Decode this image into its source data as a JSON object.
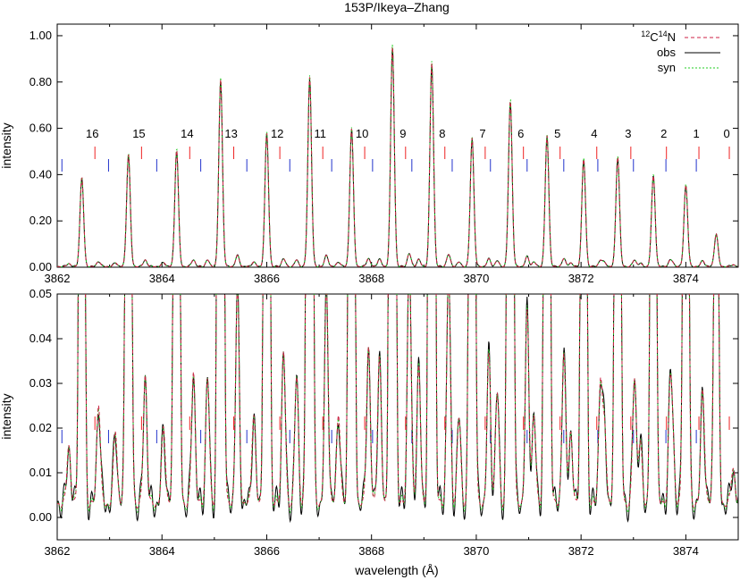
{
  "title": "153P/Ikeya–Zhang",
  "legend": {
    "items": [
      {
        "label_pre": "12",
        "label_c": "C",
        "label_sup2": "14",
        "label_n": "N",
        "color": "#cc2244",
        "dash": "4,3"
      },
      {
        "label": "obs",
        "color": "#000000",
        "dash": ""
      },
      {
        "label": "syn",
        "color": "#22cc22",
        "dash": "2,2"
      }
    ]
  },
  "marker_colors": {
    "red": "#ee2222",
    "blue": "#2233cc"
  },
  "chart_data": [
    {
      "type": "line",
      "panel": "top",
      "xlabel": "",
      "ylabel": "intensity",
      "xlim": [
        3862,
        3875
      ],
      "ylim": [
        0,
        1.05
      ],
      "x_ticks": [
        "3862",
        "3864",
        "3866",
        "3868",
        "3870",
        "3872",
        "3874"
      ],
      "y_ticks": [
        "0.00",
        "0.20",
        "0.40",
        "0.60",
        "0.80",
        "1.00"
      ],
      "line_numbers": [
        "16",
        "15",
        "14",
        "13",
        "12",
        "11",
        "10",
        "9",
        "8",
        "7",
        "6",
        "5",
        "4",
        "3",
        "2",
        "1",
        "0"
      ],
      "main_peaks": [
        {
          "x": 3862.47,
          "y": 0.38
        },
        {
          "x": 3863.36,
          "y": 0.48
        },
        {
          "x": 3864.28,
          "y": 0.5
        },
        {
          "x": 3865.12,
          "y": 0.8
        },
        {
          "x": 3866.0,
          "y": 0.57
        },
        {
          "x": 3866.82,
          "y": 0.81
        },
        {
          "x": 3867.62,
          "y": 0.59
        },
        {
          "x": 3868.4,
          "y": 0.94
        },
        {
          "x": 3869.15,
          "y": 0.87
        },
        {
          "x": 3869.92,
          "y": 0.55
        },
        {
          "x": 3870.65,
          "y": 0.71
        },
        {
          "x": 3871.35,
          "y": 0.56
        },
        {
          "x": 3872.05,
          "y": 0.46
        },
        {
          "x": 3872.7,
          "y": 0.47
        },
        {
          "x": 3873.38,
          "y": 0.39
        },
        {
          "x": 3874.0,
          "y": 0.35
        },
        {
          "x": 3874.58,
          "y": 0.14
        }
      ],
      "series": [
        {
          "name": "obs",
          "color": "#000000"
        },
        {
          "name": "syn",
          "color": "#22cc22"
        },
        {
          "name": "12C14N",
          "color": "#cc2244"
        }
      ]
    },
    {
      "type": "line",
      "panel": "bottom",
      "xlabel": "wavelength (Å)",
      "ylabel": "intensity",
      "xlim": [
        3862,
        3875
      ],
      "ylim": [
        -0.005,
        0.05
      ],
      "x_ticks": [
        "3862",
        "3864",
        "3866",
        "3868",
        "3870",
        "3872",
        "3874"
      ],
      "y_ticks": [
        "0.00",
        "0.01",
        "0.02",
        "0.03",
        "0.04",
        "0.05"
      ]
    }
  ]
}
